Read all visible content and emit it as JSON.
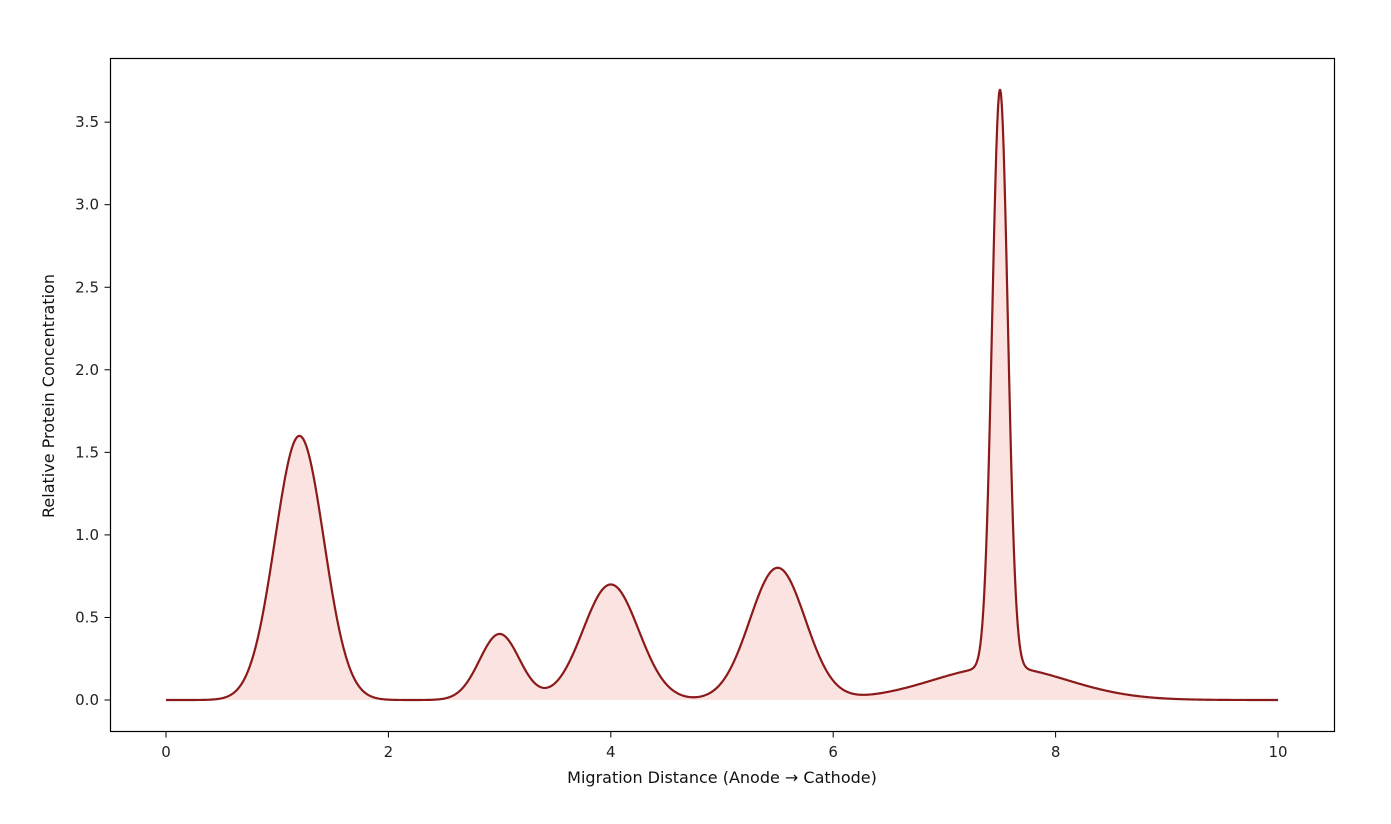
{
  "chart_data": {
    "type": "area",
    "title": "",
    "xlabel": "Migration Distance (Anode → Cathode)",
    "ylabel": "Relative Protein Concentration",
    "xlim": [
      -0.5,
      10.5
    ],
    "ylim": [
      -0.19,
      3.88
    ],
    "x_ticks": [
      0,
      2,
      4,
      6,
      8,
      10
    ],
    "x_tick_labels": [
      "0",
      "2",
      "4",
      "6",
      "8",
      "10"
    ],
    "y_ticks": [
      0.0,
      0.5,
      1.0,
      1.5,
      2.0,
      2.5,
      3.0,
      3.5
    ],
    "y_tick_labels": [
      "0.0",
      "0.5",
      "1.0",
      "1.5",
      "2.0",
      "2.5",
      "3.0",
      "3.5"
    ],
    "grid": false,
    "legend": null,
    "line_color": "#8b1a1a",
    "fill_color": "#fae3e1",
    "x_range": [
      0,
      10
    ],
    "peaks": [
      {
        "center": 1.2,
        "height": 1.6,
        "sigma": 0.22
      },
      {
        "center": 3.0,
        "height": 0.4,
        "sigma": 0.18
      },
      {
        "center": 4.0,
        "height": 0.7,
        "sigma": 0.25
      },
      {
        "center": 5.5,
        "height": 0.8,
        "sigma": 0.25
      },
      {
        "center": 7.5,
        "height": 3.5,
        "sigma": 0.07
      },
      {
        "center": 7.5,
        "height": 0.2,
        "sigma": 0.6
      }
    ],
    "key_points": [
      {
        "x": 0.0,
        "y": 0.0
      },
      {
        "x": 1.2,
        "y": 1.6
      },
      {
        "x": 2.2,
        "y": 0.0
      },
      {
        "x": 3.0,
        "y": 0.4
      },
      {
        "x": 3.4,
        "y": 0.07
      },
      {
        "x": 4.0,
        "y": 0.7
      },
      {
        "x": 4.75,
        "y": 0.02
      },
      {
        "x": 5.5,
        "y": 0.8
      },
      {
        "x": 6.25,
        "y": 0.05
      },
      {
        "x": 7.2,
        "y": 0.19
      },
      {
        "x": 7.5,
        "y": 3.7
      },
      {
        "x": 7.8,
        "y": 0.19
      },
      {
        "x": 9.0,
        "y": 0.02
      },
      {
        "x": 10.0,
        "y": 0.0
      }
    ]
  }
}
